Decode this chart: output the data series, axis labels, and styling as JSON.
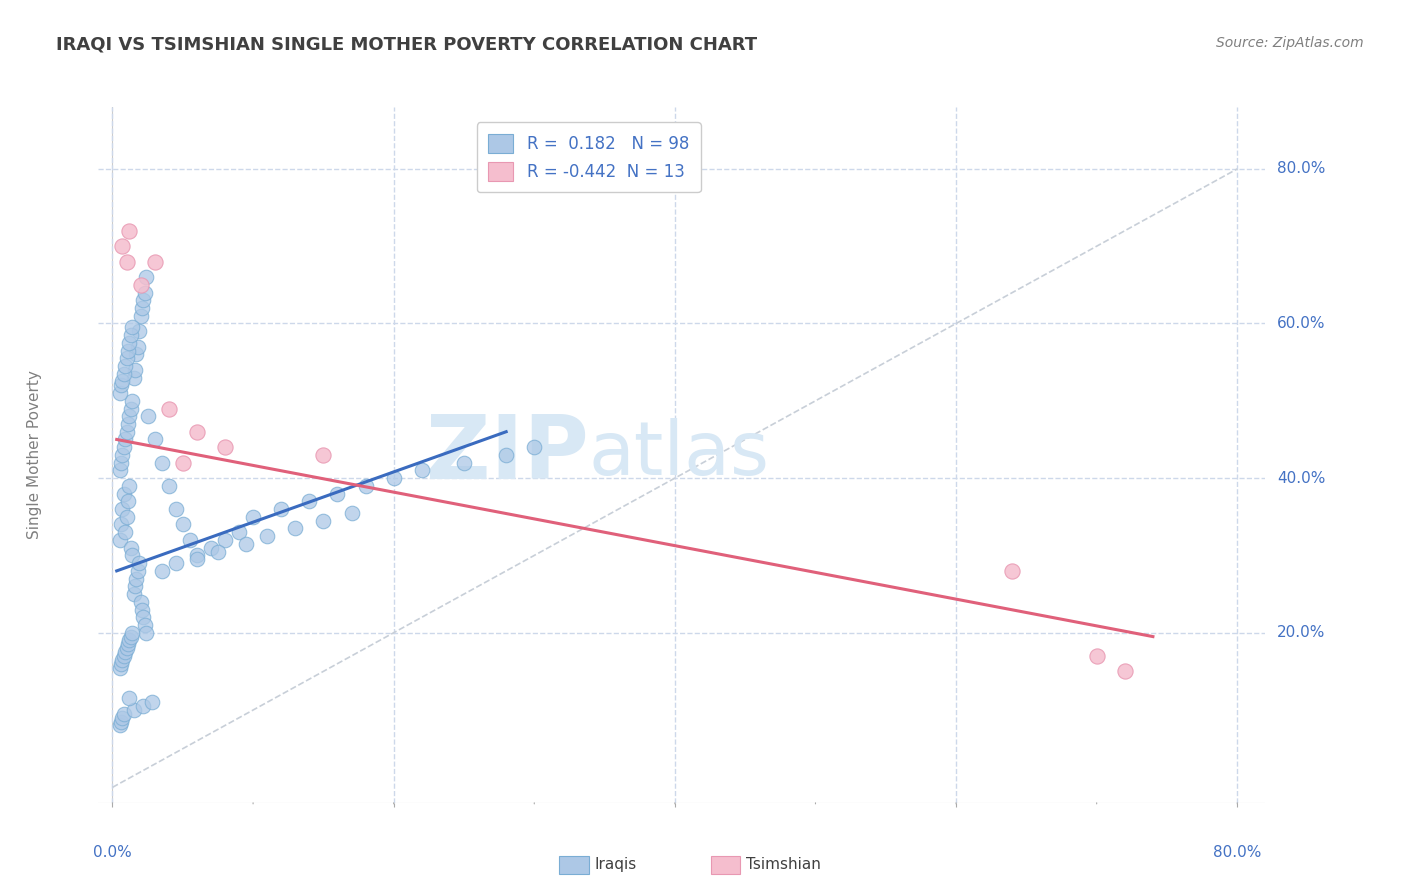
{
  "title": "IRAQI VS TSIMSHIAN SINGLE MOTHER POVERTY CORRELATION CHART",
  "source_text": "Source: ZipAtlas.com",
  "ylabel": "Single Mother Poverty",
  "xlim": [
    -0.01,
    0.82
  ],
  "ylim": [
    -0.02,
    0.88
  ],
  "ytick_values": [
    0.2,
    0.4,
    0.6,
    0.8
  ],
  "xtick_values": [
    0.0,
    0.8
  ],
  "grid_xtick_values": [
    0.2,
    0.4,
    0.6,
    0.8
  ],
  "legend_r_iraqi": " 0.182",
  "legend_n_iraqi": "98",
  "legend_r_tsimshian": "-0.442",
  "legend_n_tsimshian": "13",
  "iraqi_color": "#adc8e6",
  "iraqi_edge_color": "#7aadd4",
  "iraqi_line_color": "#3a6bbf",
  "tsimshian_color": "#f5bece",
  "tsimshian_edge_color": "#e898b2",
  "tsimshian_line_color": "#e0607a",
  "diagonal_color": "#c8cfd8",
  "background_color": "#ffffff",
  "grid_color": "#cdd8ea",
  "watermark_zip": "ZIP",
  "watermark_atlas": "atlas",
  "watermark_color": "#d8e8f5",
  "title_color": "#404040",
  "legend_text_color": "#4472c4",
  "axis_label_color": "#808080",
  "ytick_color": "#4472c4",
  "xtick_color": "#4472c4",
  "source_color": "#808080",
  "bottom_legend_iraqis": "Iraqis",
  "bottom_legend_tsimshian": "Tsimshian",
  "iraqi_x": [
    0.005,
    0.006,
    0.007,
    0.008,
    0.009,
    0.01,
    0.011,
    0.012,
    0.013,
    0.014,
    0.015,
    0.016,
    0.017,
    0.018,
    0.019,
    0.02,
    0.021,
    0.022,
    0.023,
    0.024,
    0.005,
    0.006,
    0.007,
    0.008,
    0.009,
    0.01,
    0.011,
    0.012,
    0.013,
    0.014,
    0.015,
    0.016,
    0.017,
    0.018,
    0.019,
    0.02,
    0.021,
    0.022,
    0.023,
    0.024,
    0.005,
    0.006,
    0.007,
    0.008,
    0.009,
    0.01,
    0.011,
    0.012,
    0.013,
    0.014,
    0.025,
    0.03,
    0.035,
    0.04,
    0.045,
    0.05,
    0.055,
    0.06,
    0.07,
    0.08,
    0.09,
    0.1,
    0.12,
    0.14,
    0.16,
    0.18,
    0.2,
    0.22,
    0.25,
    0.28,
    0.3,
    0.035,
    0.045,
    0.06,
    0.075,
    0.095,
    0.11,
    0.13,
    0.15,
    0.17,
    0.005,
    0.006,
    0.007,
    0.008,
    0.009,
    0.01,
    0.011,
    0.012,
    0.013,
    0.014,
    0.005,
    0.006,
    0.007,
    0.008,
    0.015,
    0.022,
    0.028,
    0.012
  ],
  "iraqi_y": [
    0.32,
    0.34,
    0.36,
    0.38,
    0.33,
    0.35,
    0.37,
    0.39,
    0.31,
    0.3,
    0.25,
    0.26,
    0.27,
    0.28,
    0.29,
    0.24,
    0.23,
    0.22,
    0.21,
    0.2,
    0.41,
    0.42,
    0.43,
    0.44,
    0.45,
    0.46,
    0.47,
    0.48,
    0.49,
    0.5,
    0.53,
    0.54,
    0.56,
    0.57,
    0.59,
    0.61,
    0.62,
    0.63,
    0.64,
    0.66,
    0.51,
    0.52,
    0.525,
    0.535,
    0.545,
    0.555,
    0.565,
    0.575,
    0.585,
    0.595,
    0.48,
    0.45,
    0.42,
    0.39,
    0.36,
    0.34,
    0.32,
    0.3,
    0.31,
    0.32,
    0.33,
    0.35,
    0.36,
    0.37,
    0.38,
    0.39,
    0.4,
    0.41,
    0.42,
    0.43,
    0.44,
    0.28,
    0.29,
    0.295,
    0.305,
    0.315,
    0.325,
    0.335,
    0.345,
    0.355,
    0.155,
    0.16,
    0.165,
    0.17,
    0.175,
    0.18,
    0.185,
    0.19,
    0.195,
    0.2,
    0.08,
    0.085,
    0.09,
    0.095,
    0.1,
    0.105,
    0.11,
    0.115
  ],
  "tsimshian_x": [
    0.007,
    0.012,
    0.02,
    0.03,
    0.05,
    0.06,
    0.08,
    0.15,
    0.64,
    0.7,
    0.72,
    0.01,
    0.04
  ],
  "tsimshian_y": [
    0.7,
    0.72,
    0.65,
    0.68,
    0.42,
    0.46,
    0.44,
    0.43,
    0.28,
    0.17,
    0.15,
    0.68,
    0.49
  ],
  "iraqi_trend_x": [
    0.003,
    0.28
  ],
  "iraqi_trend_y": [
    0.28,
    0.46
  ],
  "tsimshian_trend_x": [
    0.003,
    0.74
  ],
  "tsimshian_trend_y": [
    0.45,
    0.195
  ]
}
